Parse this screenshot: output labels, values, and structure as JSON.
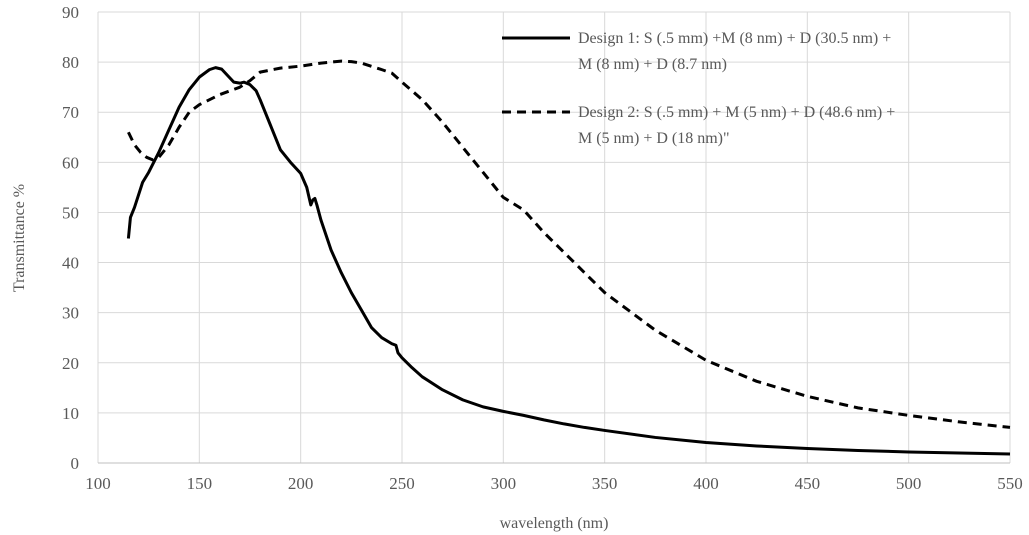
{
  "chart_data": {
    "type": "line",
    "xlabel": "wavelength (nm)",
    "ylabel": "Transmittance %",
    "xlim": [
      100,
      550
    ],
    "ylim": [
      0,
      90
    ],
    "xticks": [
      100,
      150,
      200,
      250,
      300,
      350,
      400,
      450,
      500,
      550
    ],
    "yticks": [
      0,
      10,
      20,
      30,
      40,
      50,
      60,
      70,
      80,
      90
    ],
    "grid": true,
    "legend_position": "top-right",
    "series": [
      {
        "name_lines": [
          "Design 1: S (.5 mm) +M (8 nm) + D (30.5 nm) +",
          "M (8 nm) + D (8.7 nm)"
        ],
        "style": "solid",
        "color": "#000000",
        "x": [
          115,
          116,
          118,
          120,
          122,
          125,
          130,
          135,
          140,
          145,
          150,
          155,
          158,
          161,
          164,
          167,
          170,
          172,
          175,
          178,
          180,
          185,
          190,
          195,
          200,
          203,
          205,
          206,
          207,
          208,
          210,
          215,
          220,
          225,
          230,
          235,
          240,
          245,
          247,
          248,
          250,
          255,
          260,
          270,
          280,
          290,
          300,
          310,
          320,
          330,
          340,
          350,
          375,
          400,
          425,
          450,
          475,
          500,
          525,
          550
        ],
        "values": [
          44.8,
          49,
          51,
          53.5,
          56,
          58,
          62,
          66.5,
          71,
          74.5,
          77,
          78.5,
          78.9,
          78.6,
          77.3,
          76,
          75.8,
          76,
          75.5,
          74.3,
          72.5,
          67.5,
          62.5,
          60,
          57.8,
          55,
          51.5,
          52.5,
          52.8,
          51.5,
          48.5,
          42.5,
          38,
          34,
          30.5,
          27,
          25,
          23.8,
          23.5,
          22,
          21,
          19,
          17.2,
          14.6,
          12.6,
          11.2,
          10.3,
          9.5,
          8.6,
          7.8,
          7.1,
          6.5,
          5.1,
          4.1,
          3.4,
          2.9,
          2.5,
          2.2,
          2.0,
          1.8
        ]
      },
      {
        "name_lines": [
          "Design 2: S (.5 mm) + M (5 nm) + D (48.6 nm) +",
          "M (5 nm) + D (18 nm)\""
        ],
        "style": "dashed",
        "color": "#000000",
        "x": [
          115,
          118,
          121,
          124,
          127,
          130,
          135,
          140,
          145,
          150,
          160,
          170,
          175,
          180,
          190,
          200,
          210,
          220,
          225,
          230,
          240,
          245,
          250,
          260,
          270,
          280,
          290,
          300,
          310,
          320,
          330,
          340,
          350,
          375,
          400,
          425,
          450,
          475,
          500,
          525,
          550
        ],
        "values": [
          66,
          63.5,
          62,
          61,
          60.5,
          61,
          63.5,
          67,
          70,
          71.5,
          73.5,
          75,
          76.3,
          78,
          78.8,
          79.2,
          79.8,
          80.2,
          80.1,
          79.8,
          78.5,
          77.8,
          76,
          72.5,
          68,
          63,
          58,
          53,
          50.5,
          46,
          42,
          38,
          34,
          26.5,
          20.5,
          16.3,
          13.3,
          11,
          9.5,
          8.2,
          7.1
        ]
      }
    ]
  }
}
